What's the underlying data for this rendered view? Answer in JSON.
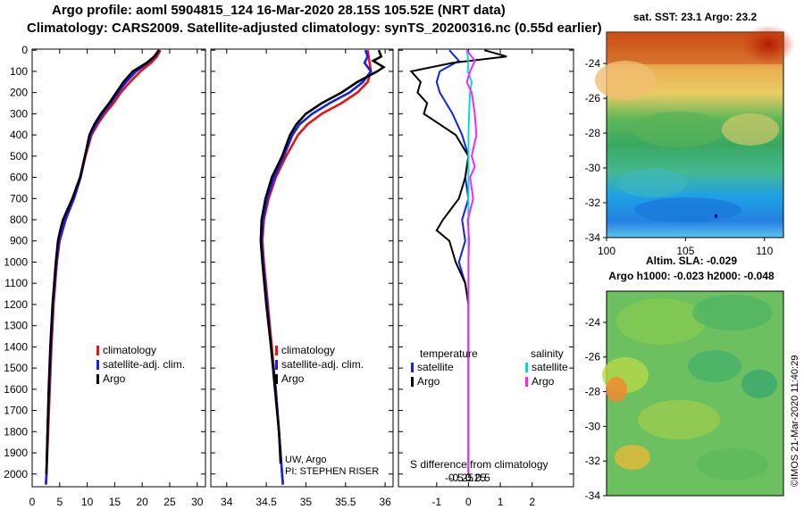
{
  "header": {
    "line1": "Argo profile: aoml 5904815_124 16-Mar-2020 28.15S 105.52E (NRT data)",
    "line2": "Climatology: CARS2009. Satellite-adjusted climatology: synTS_20200316.nc (0.55d earlier)"
  },
  "colors": {
    "climatology": "#ee1111",
    "satellite": "#1122ee",
    "argo": "#000000",
    "sat_salinity": "#00dddd",
    "argo_salinity": "#ff22ff"
  },
  "chart_data": [
    {
      "type": "line",
      "name": "temperature-profile",
      "xticks": [
        "0",
        "5",
        "10",
        "15",
        "20",
        "25",
        "30"
      ],
      "xlim": [
        0,
        31.5
      ],
      "ylim": [
        2060,
        -5
      ],
      "yticks": [
        "0",
        "100",
        "200",
        "300",
        "400",
        "500",
        "600",
        "700",
        "800",
        "900",
        "1000",
        "1100",
        "1200",
        "1300",
        "1400",
        "1500",
        "1600",
        "1700",
        "1800",
        "1900",
        "2000"
      ],
      "legend": [
        "climatology",
        "satellite-adj. clim.",
        "Argo"
      ],
      "series": [
        {
          "name": "climatology",
          "depth": [
            0,
            30,
            60,
            100,
            150,
            200,
            250,
            300,
            350,
            400,
            500,
            600,
            700,
            800,
            900,
            1000,
            1200,
            1400,
            1600,
            1800,
            2000,
            2050
          ],
          "values": [
            23.3,
            22.7,
            21.6,
            19.7,
            17.8,
            16.1,
            14.8,
            13.2,
            11.9,
            10.8,
            9.7,
            8.8,
            7.6,
            6.1,
            5.0,
            4.5,
            3.9,
            3.5,
            3.2,
            2.9,
            2.6,
            2.5
          ]
        },
        {
          "name": "satellite-adj. clim.",
          "depth": [
            0,
            30,
            60,
            100,
            150,
            200,
            250,
            300,
            350,
            400,
            500,
            600,
            700,
            800,
            900,
            1000,
            1200,
            1400,
            1600,
            1800,
            2000,
            2050
          ],
          "values": [
            23.1,
            22.3,
            21.0,
            18.9,
            17.1,
            15.6,
            14.3,
            12.8,
            11.6,
            10.6,
            9.6,
            8.8,
            7.6,
            6.0,
            4.9,
            4.4,
            3.8,
            3.4,
            3.1,
            2.8,
            2.6,
            2.5
          ]
        },
        {
          "name": "Argo",
          "depth": [
            0,
            30,
            60,
            100,
            150,
            200,
            250,
            300,
            350,
            400,
            500,
            600,
            700,
            800,
            850,
            900,
            1000,
            1200,
            1400,
            1600,
            1800,
            2000
          ],
          "values": [
            23.0,
            22.2,
            20.8,
            18.3,
            16.6,
            15.3,
            14.0,
            12.5,
            11.3,
            10.4,
            9.6,
            8.7,
            7.3,
            5.6,
            5.1,
            4.7,
            4.3,
            3.7,
            3.3,
            3.0,
            2.8,
            2.6
          ]
        }
      ]
    },
    {
      "type": "line",
      "name": "salinity-profile",
      "xticks": [
        "34",
        "34.5",
        "35",
        "35.5",
        "36"
      ],
      "xlim": [
        33.8,
        36.1
      ],
      "ylim": [
        2060,
        -5
      ],
      "legend": [
        "climatology",
        "satellite-adj. clim.",
        "Argo"
      ],
      "annotation": [
        "UW, Argo",
        "PI: STEPHEN RISER"
      ],
      "series": [
        {
          "name": "climatology",
          "depth": [
            0,
            50,
            100,
            150,
            200,
            250,
            300,
            350,
            400,
            500,
            600,
            700,
            800,
            900,
            1000,
            1200,
            1400,
            1600,
            1800,
            2000,
            2050
          ],
          "values": [
            35.78,
            35.8,
            35.82,
            35.78,
            35.65,
            35.45,
            35.2,
            35.02,
            34.9,
            34.75,
            34.62,
            34.53,
            34.47,
            34.45,
            34.47,
            34.52,
            34.57,
            34.62,
            34.66,
            34.7,
            34.71
          ]
        },
        {
          "name": "satellite-adj. clim.",
          "depth": [
            0,
            30,
            60,
            100,
            150,
            200,
            250,
            300,
            350,
            400,
            500,
            600,
            700,
            800,
            900,
            1000,
            1200,
            1400,
            1600,
            1800,
            2000,
            2050
          ],
          "values": [
            35.75,
            35.78,
            35.74,
            35.82,
            35.72,
            35.55,
            35.3,
            35.08,
            34.92,
            34.83,
            34.72,
            34.6,
            34.51,
            34.46,
            34.44,
            34.46,
            34.51,
            34.56,
            34.62,
            34.66,
            34.7,
            34.71
          ]
        },
        {
          "name": "Argo",
          "depth": [
            0,
            30,
            50,
            80,
            100,
            150,
            200,
            250,
            300,
            350,
            400,
            500,
            600,
            700,
            800,
            900,
            1000,
            1200,
            1400,
            1600,
            1800,
            1950
          ],
          "values": [
            35.92,
            35.95,
            35.85,
            35.98,
            35.9,
            35.65,
            35.45,
            35.2,
            35.0,
            34.88,
            34.8,
            34.7,
            34.57,
            34.49,
            34.44,
            34.43,
            34.45,
            34.5,
            34.56,
            34.61,
            34.66,
            34.68
          ]
        }
      ]
    },
    {
      "type": "line",
      "name": "difference-from-climatology",
      "xticks": [
        "-1",
        "0",
        "1",
        "2"
      ],
      "xticks2": [
        "-0.5",
        "-0.25",
        "0",
        "0.25",
        "0.5"
      ],
      "xlim": [
        -2.2,
        3.3
      ],
      "ylim": [
        2060,
        -5
      ],
      "xlabel": "S difference from climatology",
      "legend_temperature_title": "temperature",
      "legend_salinity_title": "salinity",
      "legend_temperature": [
        "satellite",
        "Argo"
      ],
      "legend_salinity": [
        "satellite",
        "Argo"
      ],
      "series": [
        {
          "name": "temperature satellite",
          "depth": [
            0,
            50,
            100,
            150,
            200,
            250,
            300,
            400,
            500,
            600,
            700,
            800,
            900,
            1000,
            1100,
            1200,
            1400,
            1600,
            1800,
            2000
          ],
          "values": [
            -0.6,
            -0.3,
            -0.9,
            -1.0,
            -0.9,
            -0.7,
            -0.5,
            -0.2,
            0.0,
            -0.1,
            0.0,
            -0.2,
            -0.1,
            -0.3,
            -0.1,
            0.0,
            0.0,
            0.0,
            0.0,
            0.0
          ]
        },
        {
          "name": "temperature Argo",
          "depth": [
            0,
            30,
            60,
            100,
            150,
            200,
            250,
            300,
            350,
            400,
            450,
            500,
            600,
            700,
            800,
            850,
            900,
            1000,
            1100,
            1200,
            1400,
            1600,
            1800,
            2000
          ],
          "values": [
            0.5,
            1.2,
            -0.5,
            -1.8,
            -1.5,
            -1.6,
            -1.3,
            -1.4,
            -0.9,
            -0.4,
            -0.2,
            0.0,
            -0.1,
            -0.3,
            -0.8,
            -1.0,
            -0.6,
            -0.4,
            -0.1,
            0.0,
            0.0,
            0.0,
            0.0,
            0.0
          ]
        },
        {
          "name": "salinity satellite",
          "depth": [
            0,
            50,
            100,
            150,
            200,
            300,
            400,
            500,
            700,
            1000,
            1500,
            2000
          ],
          "values": [
            -0.05,
            0.0,
            -0.02,
            0.1,
            0.05,
            0.02,
            0.0,
            0.0,
            0.0,
            0.0,
            0.0,
            0.0
          ]
        },
        {
          "name": "salinity Argo",
          "depth": [
            0,
            50,
            100,
            150,
            200,
            300,
            400,
            500,
            550,
            600,
            700,
            800,
            900,
            1000,
            1200,
            1500,
            2000
          ],
          "values": [
            -0.05,
            0.2,
            0.05,
            -0.05,
            0.1,
            0.2,
            0.25,
            0.1,
            0.2,
            0.05,
            0.15,
            -0.02,
            0.02,
            0.0,
            0.0,
            0.0,
            0.0
          ]
        }
      ]
    },
    {
      "type": "heatmap",
      "name": "sat-sst-map",
      "title": "sat. SST: 23.1 Argo: 23.2",
      "xticks": [
        "100",
        "105",
        "110"
      ],
      "yticks": [
        "-24",
        "-26",
        "-28",
        "-30",
        "-32",
        "-34"
      ],
      "xlim": [
        100,
        111.2
      ],
      "ylim": [
        -34,
        -22.2
      ]
    },
    {
      "type": "heatmap",
      "name": "altimetry-sla-map",
      "title": "Altim. SLA: -0.029",
      "subtitle": "Argo h1000: -0.023 h2000: -0.048",
      "yticks": [
        "-24",
        "-26",
        "-28",
        "-30",
        "-32",
        "-34"
      ],
      "ylim": [
        -34,
        -22.2
      ]
    }
  ],
  "watermark": "©IMOS 21-Mar-2020 11:40:29"
}
